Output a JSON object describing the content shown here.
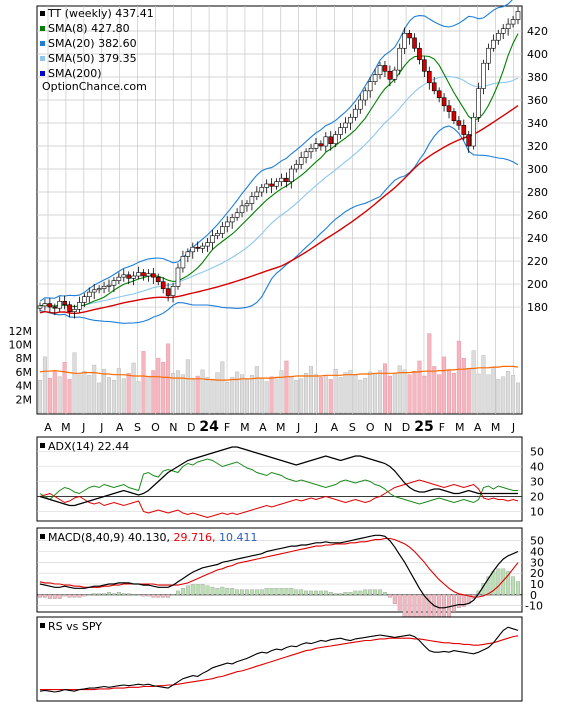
{
  "chart_data": [
    {
      "type": "candlestick",
      "panel": "price",
      "legend": [
        {
          "label": "TT (weekly)",
          "value": "437.41",
          "color": "#000000"
        },
        {
          "label": "SMA(8)",
          "value": "427.80",
          "color": "#008000"
        },
        {
          "label": "SMA(20)",
          "value": "382.60",
          "color": "#1e7fd8"
        },
        {
          "label": "SMA(50)",
          "value": "379.35",
          "color": "#8cc7ee"
        },
        {
          "label": "SMA(200)",
          "value": "",
          "color": "#0000cc"
        }
      ],
      "watermark": "OptionChance.com",
      "y_ticks": [
        180,
        200,
        220,
        240,
        260,
        280,
        300,
        320,
        340,
        360,
        380,
        400,
        420
      ],
      "ylim": [
        167,
        440
      ],
      "x_month_labels": [
        "A",
        "M",
        "J",
        "J",
        "A",
        "S",
        "O",
        "N",
        "D",
        "24",
        "F",
        "M",
        "A",
        "M",
        "J",
        "J",
        "A",
        "S",
        "O",
        "N",
        "D",
        "25",
        "F",
        "M",
        "A",
        "M",
        "J"
      ],
      "close": [
        181,
        183,
        180,
        179,
        185,
        182,
        176,
        178,
        184,
        189,
        193,
        195,
        196,
        198,
        199,
        203,
        206,
        208,
        205,
        207,
        210,
        207,
        209,
        206,
        202,
        196,
        190,
        198,
        214,
        224,
        228,
        232,
        231,
        233,
        236,
        242,
        244,
        250,
        254,
        258,
        262,
        268,
        270,
        276,
        280,
        284,
        287,
        285,
        289,
        292,
        289,
        300,
        304,
        310,
        315,
        318,
        322,
        320,
        328,
        322,
        330,
        336,
        340,
        345,
        352,
        360,
        368,
        376,
        382,
        390,
        385,
        378,
        386,
        405,
        418,
        414,
        405,
        395,
        385,
        375,
        368,
        362,
        355,
        350,
        342,
        338,
        330,
        320,
        345,
        370,
        392,
        405,
        412,
        418,
        422,
        426,
        430,
        437
      ],
      "volume_ticks": [
        "2M",
        "4M",
        "6M",
        "8M",
        "10M",
        "12M"
      ],
      "volume_max_m": 13,
      "volume_m": [
        4.8,
        8.2,
        5.1,
        6.0,
        5.3,
        7.4,
        4.9,
        8.8,
        5.6,
        6.1,
        5.5,
        7.0,
        4.4,
        6.4,
        5.2,
        4.8,
        6.5,
        5.0,
        5.8,
        7.3,
        4.6,
        9.0,
        5.4,
        6.2,
        8.0,
        7.4,
        10.1,
        5.8,
        6.2,
        5.6,
        7.8,
        4.9,
        5.4,
        6.3,
        5.2,
        4.8,
        5.9,
        7.5,
        4.5,
        5.2,
        6.0,
        5.6,
        4.9,
        5.5,
        6.8,
        5.1,
        4.6,
        5.3,
        5.0,
        6.2,
        7.6,
        5.4,
        4.8,
        5.0,
        5.8,
        6.8,
        5.6,
        5.2,
        5.5,
        4.9,
        6.4,
        5.2,
        5.9,
        6.2,
        5.5,
        4.8,
        5.1,
        6.0,
        5.7,
        6.2,
        7.2,
        5.4,
        5.8,
        6.9,
        6.3,
        5.6,
        6.1,
        7.6,
        5.4,
        11.6,
        6.8,
        5.6,
        8.2,
        6.2,
        5.8,
        10.5,
        8.0,
        6.5,
        9.1,
        5.7,
        8.4,
        5.6,
        6.6,
        4.9,
        5.3,
        6.1,
        5.5,
        4.4
      ],
      "volume_avg_m": [
        6.0,
        6.1,
        6.1,
        6.2,
        6.1,
        6.0,
        5.9,
        5.8,
        5.8,
        5.9,
        5.9,
        5.9,
        5.8,
        5.7,
        5.7,
        5.6,
        5.6,
        5.6,
        5.5,
        5.4,
        5.4,
        5.4,
        5.3,
        5.3,
        5.3,
        5.2,
        5.2,
        5.1,
        5.1,
        5.1,
        5.0,
        5.0,
        5.0,
        5.0,
        4.9,
        4.9,
        4.8,
        4.8,
        4.8,
        4.9,
        4.9,
        5.0,
        5.0,
        5.0,
        5.1,
        5.1,
        5.1,
        5.1,
        5.2,
        5.2,
        5.3,
        5.3,
        5.4,
        5.4,
        5.4,
        5.4,
        5.4,
        5.4,
        5.5,
        5.5,
        5.5,
        5.5,
        5.6,
        5.6,
        5.6,
        5.7,
        5.7,
        5.7,
        5.8,
        5.8,
        5.8,
        5.8,
        5.8,
        5.9,
        5.9,
        5.9,
        6.0,
        6.0,
        6.1,
        6.1,
        6.1,
        6.2,
        6.2,
        6.3,
        6.3,
        6.4,
        6.4,
        6.5,
        6.5,
        6.6,
        6.6,
        6.6,
        6.7,
        6.7,
        6.8,
        6.8,
        6.8,
        6.7
      ]
    },
    {
      "type": "line",
      "panel": "adx",
      "title": "ADX(14)",
      "value": "22.44",
      "y_ticks": [
        10,
        20,
        30,
        40,
        50
      ],
      "ylim": [
        5,
        57
      ],
      "adx": [
        20,
        19,
        18,
        17,
        16,
        15,
        14,
        14,
        15,
        16,
        17,
        18,
        19,
        20,
        21,
        22,
        23,
        24,
        23,
        22,
        21,
        22,
        24,
        27,
        30,
        33,
        36,
        38,
        40,
        42,
        44,
        45,
        46,
        47,
        48,
        49,
        50,
        51,
        52,
        53,
        53,
        52,
        51,
        50,
        49,
        48,
        47,
        46,
        45,
        44,
        43,
        42,
        41,
        42,
        43,
        44,
        45,
        46,
        47,
        46,
        45,
        44,
        45,
        46,
        47,
        47,
        46,
        45,
        44,
        43,
        42,
        40,
        37,
        33,
        29,
        26,
        24,
        23,
        23,
        24,
        25,
        25,
        24,
        23,
        22,
        22,
        23,
        24,
        23,
        22,
        22,
        22,
        22,
        22,
        22,
        22,
        22,
        22
      ],
      "plus_di": [
        22,
        20,
        18,
        21,
        24,
        26,
        25,
        23,
        22,
        24,
        26,
        27,
        26,
        28,
        27,
        26,
        27,
        28,
        26,
        25,
        24,
        35,
        36,
        34,
        33,
        37,
        38,
        37,
        36,
        40,
        42,
        41,
        43,
        44,
        45,
        44,
        42,
        40,
        41,
        42,
        43,
        41,
        39,
        38,
        36,
        35,
        34,
        36,
        35,
        34,
        32,
        31,
        30,
        31,
        30,
        29,
        28,
        27,
        26,
        27,
        28,
        30,
        31,
        30,
        29,
        30,
        31,
        30,
        28,
        27,
        25,
        22,
        20,
        19,
        18,
        17,
        16,
        15,
        16,
        17,
        18,
        19,
        18,
        17,
        16,
        17,
        18,
        17,
        16,
        18,
        26,
        27,
        25,
        27,
        26,
        25,
        24,
        24
      ],
      "minus_di": [
        20,
        21,
        22,
        20,
        18,
        16,
        17,
        19,
        20,
        18,
        16,
        15,
        16,
        14,
        15,
        16,
        15,
        14,
        15,
        16,
        17,
        10,
        9,
        10,
        11,
        10,
        9,
        10,
        11,
        9,
        8,
        9,
        8,
        7,
        6,
        7,
        8,
        9,
        8,
        9,
        8,
        9,
        10,
        11,
        12,
        13,
        14,
        13,
        14,
        15,
        16,
        17,
        18,
        17,
        18,
        19,
        18,
        19,
        20,
        19,
        18,
        17,
        16,
        17,
        18,
        17,
        16,
        17,
        19,
        20,
        22,
        24,
        26,
        27,
        28,
        29,
        30,
        31,
        30,
        29,
        28,
        27,
        26,
        27,
        28,
        27,
        26,
        27,
        28,
        25,
        19,
        18,
        19,
        18,
        18,
        17,
        18,
        17
      ]
    },
    {
      "type": "line",
      "panel": "macd",
      "title": "MACD(8,40,9)",
      "values": [
        {
          "text": "40.130",
          "color": "#000000"
        },
        {
          "text": "29.716",
          "color": "#e8000b"
        },
        {
          "text": "10.411",
          "color": "#2a5ebd"
        }
      ],
      "y_ticks": [
        -10,
        0,
        10,
        20,
        30,
        40,
        50
      ],
      "ylim": [
        -14,
        58
      ],
      "macd": [
        10,
        9,
        8,
        7,
        7,
        8,
        7,
        6,
        6,
        6,
        7,
        8,
        8,
        9,
        10,
        10,
        11,
        11,
        11,
        10,
        10,
        9,
        9,
        8,
        7,
        7,
        7,
        9,
        12,
        15,
        18,
        21,
        23,
        25,
        26,
        27,
        28,
        30,
        31,
        32,
        33,
        34,
        35,
        36,
        37,
        38,
        40,
        41,
        42,
        43,
        44,
        45,
        45,
        46,
        46,
        47,
        48,
        48,
        49,
        48,
        48,
        48,
        49,
        50,
        51,
        52,
        53,
        54,
        55,
        55,
        54,
        50,
        44,
        37,
        30,
        22,
        14,
        6,
        -1,
        -6,
        -10,
        -12,
        -12,
        -11,
        -10,
        -9,
        -9,
        -8,
        -5,
        1,
        8,
        15,
        22,
        28,
        33,
        36,
        38,
        40
      ],
      "signal": [
        12,
        11,
        11,
        10,
        10,
        9,
        9,
        8,
        8,
        7,
        7,
        7,
        7,
        8,
        8,
        9,
        9,
        10,
        10,
        10,
        10,
        10,
        10,
        10,
        9,
        9,
        9,
        9,
        9,
        10,
        11,
        13,
        15,
        17,
        19,
        21,
        23,
        24,
        26,
        27,
        29,
        30,
        31,
        32,
        33,
        34,
        35,
        36,
        37,
        38,
        39,
        40,
        41,
        42,
        43,
        44,
        45,
        45,
        46,
        46,
        47,
        47,
        47,
        48,
        48,
        49,
        49,
        50,
        51,
        51,
        52,
        52,
        51,
        49,
        47,
        44,
        40,
        35,
        30,
        24,
        19,
        14,
        10,
        6,
        3,
        1,
        0,
        -1,
        -2,
        -2,
        -1,
        1,
        4,
        8,
        13,
        18,
        24,
        29.7
      ]
    },
    {
      "type": "line",
      "panel": "rs",
      "title": "RS vs SPY",
      "rs": [
        10,
        11,
        10,
        9,
        10,
        12,
        11,
        10,
        12,
        13,
        14,
        14,
        15,
        16,
        15,
        16,
        17,
        18,
        17,
        18,
        19,
        18,
        19,
        17,
        16,
        15,
        14,
        18,
        22,
        26,
        28,
        30,
        29,
        33,
        36,
        40,
        42,
        44,
        46,
        45,
        48,
        50,
        52,
        55,
        58,
        60,
        59,
        62,
        64,
        63,
        66,
        68,
        67,
        70,
        72,
        71,
        73,
        75,
        74,
        76,
        77,
        78,
        76,
        75,
        77,
        78,
        79,
        80,
        81,
        82,
        81,
        80,
        79,
        80,
        81,
        82,
        80,
        75,
        68,
        62,
        60,
        60,
        61,
        60,
        62,
        61,
        60,
        59,
        58,
        60,
        63,
        66,
        72,
        80,
        88,
        92,
        90,
        88
      ],
      "avg": [
        12,
        12,
        12,
        12,
        12,
        12,
        12,
        12,
        12,
        12,
        12,
        12,
        13,
        13,
        13,
        14,
        14,
        14,
        15,
        15,
        15,
        16,
        16,
        16,
        17,
        17,
        18,
        18,
        19,
        20,
        21,
        22,
        23,
        24,
        25,
        26,
        28,
        29,
        31,
        33,
        35,
        36,
        38,
        40,
        42,
        44,
        46,
        48,
        50,
        52,
        54,
        56,
        58,
        60,
        62,
        63,
        65,
        66,
        67,
        68,
        69,
        70,
        71,
        72,
        73,
        74,
        75,
        75,
        76,
        77,
        77,
        78,
        78,
        78,
        78,
        78,
        77,
        77,
        76,
        75,
        74,
        73,
        72,
        72,
        71,
        71,
        70,
        70,
        69,
        69,
        70,
        71,
        72,
        74,
        76,
        78,
        80,
        81
      ]
    }
  ]
}
